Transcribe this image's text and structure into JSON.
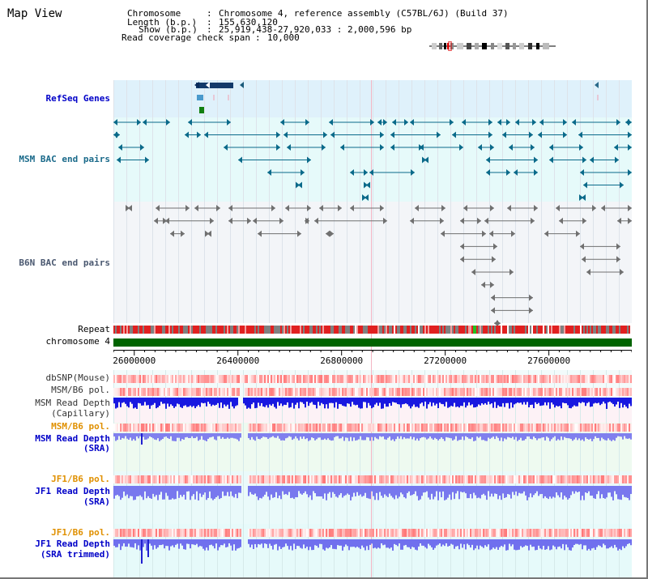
{
  "title": "Map View",
  "header": {
    "chromosome_key": "Chromosome",
    "chromosome_value": "Chromosome 4, reference assembly (C57BL/6J) (Build 37)",
    "length_key": "Length (b.p.)",
    "length_value": "155,630,120",
    "show_key": "Show (b.p.)",
    "show_value": "25,919,438-27,920,033 : 2,000,596 bp",
    "coverage_key": "Read coverage check span",
    "coverage_value": "10,000"
  },
  "tracks": {
    "refseq": "RefSeq Genes",
    "msm_bac": "MSM BAC end pairs",
    "b6n_bac": "B6N BAC end pairs",
    "repeat": "Repeat",
    "chromosome": "chromosome 4",
    "dbsnp": "dbSNP(Mouse)",
    "msm_b6_pol_1": "MSM/B6 pol.",
    "msm_read_depth_cap_1": "MSM Read Depth",
    "msm_read_depth_cap_2": "(Capillary)",
    "msm_b6_pol_2": "MSM/B6 pol.",
    "msm_read_depth_sra_1": "MSM Read Depth",
    "msm_read_depth_sra_2": "(SRA)",
    "jf1_b6_pol_1": "JF1/B6 pol.",
    "jf1_read_depth_1": "JF1 Read Depth",
    "jf1_read_depth_2": "(SRA)",
    "jf1_b6_pol_2": "JF1/B6 pol.",
    "jf1_trim_1": "JF1 Read Depth",
    "jf1_trim_2": "(SRA trimmed)"
  },
  "axis": {
    "tick_labels": [
      "26000000",
      "26400000",
      "26800000",
      "27200000",
      "27600000"
    ],
    "tick_values": [
      26000000,
      26400000,
      26800000,
      27200000,
      27600000
    ],
    "range": [
      25919438,
      27920033
    ]
  },
  "colors": {
    "refseq_bg": "#dff1fb",
    "msm_bac_bg": "#e6fafa",
    "b6n_bg": "#f3f5f8",
    "chromosome_bar": "#006400",
    "repeat_red": "#e02020",
    "repeat_gray": "#808080",
    "track_label_blue": "#0000c8",
    "track_label_orange": "#e09000",
    "msm_bac_color": "#0a6a8a",
    "b6n_color": "#707070"
  }
}
